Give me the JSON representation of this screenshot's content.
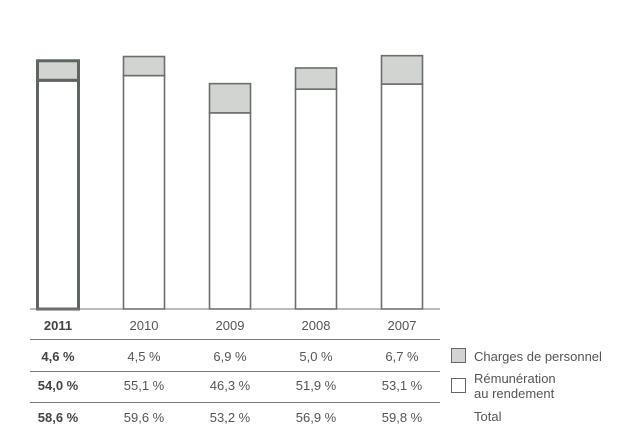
{
  "chart_data": {
    "type": "bar",
    "stacked": true,
    "categories": [
      "2011",
      "2010",
      "2009",
      "2008",
      "2007"
    ],
    "highlight_category": "2011",
    "series": [
      {
        "name": "Rémunération au rendement",
        "values": [
          54.0,
          55.1,
          46.3,
          51.9,
          53.1
        ],
        "color": "#ffffff"
      },
      {
        "name": "Charges de personnel",
        "values": [
          4.6,
          4.5,
          6.9,
          5.0,
          6.7
        ],
        "color": "#d2d4d2"
      }
    ],
    "totals": [
      58.6,
      59.6,
      53.2,
      56.9,
      59.8
    ],
    "ylim": [
      0,
      60
    ],
    "grid": false,
    "legend_position": "right of table",
    "table": {
      "rows": [
        {
          "key": "charges",
          "label": "Charges de personnel",
          "cells": [
            "4,6 %",
            "4,5 %",
            "6,9 %",
            "5,0 %",
            "6,7 %"
          ]
        },
        {
          "key": "remuneration",
          "label": "Rémunération au rendement",
          "label_lines": [
            "Rémunération",
            "au rendement"
          ],
          "cells": [
            "54,0 %",
            "55,1 %",
            "46,3 %",
            "51,9 %",
            "53,1 %"
          ]
        },
        {
          "key": "total",
          "label": "Total",
          "cells": [
            "58,6 %",
            "59,6 %",
            "53,2 %",
            "56,9 %",
            "59,8 %"
          ]
        }
      ]
    }
  },
  "colors": {
    "bar_outline": "#6a6f6a",
    "bar_outline_highlight": "#5f655f",
    "charges_fill": "#d2d4d2",
    "remuneration_fill": "#ffffff",
    "text": "#555555",
    "rule": "#777777"
  }
}
